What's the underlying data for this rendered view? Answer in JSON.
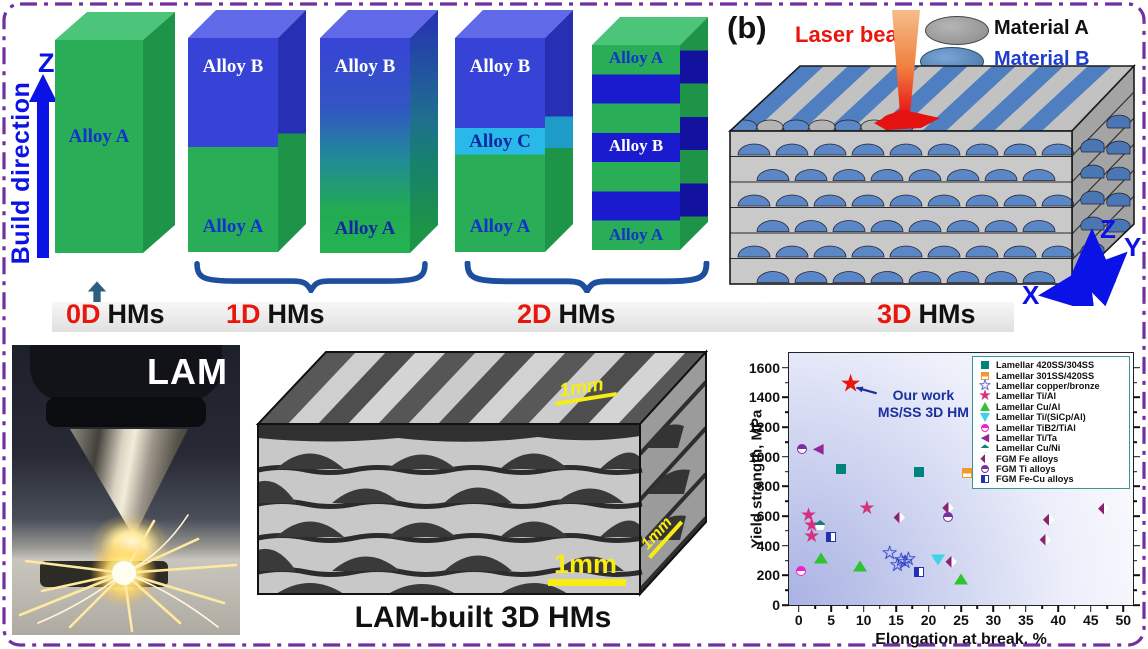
{
  "colors": {
    "border": "#7030a0",
    "accent_blue": "#0a12e6",
    "accent_red": "#e8160c",
    "green_block": "#29ad56",
    "blue_block": "#3743d6",
    "cyan_block": "#29b9e9",
    "brace": "#1e4f9e",
    "scale_bar_yellow": "#f7ec13"
  },
  "diagram": {
    "build_direction": "Build direction",
    "z_axis": "Z",
    "alloy_a": "Alloy A",
    "alloy_b": "Alloy B",
    "alloy_c": "Alloy C",
    "dims": [
      {
        "num": "0D",
        "unit": "HMs"
      },
      {
        "num": "1D",
        "unit": "HMs"
      },
      {
        "num": "2D",
        "unit": "HMs"
      },
      {
        "num": "3D",
        "unit": "HMs"
      }
    ]
  },
  "panel_b": {
    "tag": "(b)",
    "laser_label": "Laser beam",
    "materials": [
      {
        "name": "Material A",
        "color": "#9a9a9a",
        "text_color": "#111111"
      },
      {
        "name": "Material B",
        "color": "#4a7fc4",
        "text_color": "#1f3dcc"
      }
    ],
    "axes": {
      "x": "X",
      "y": "Y",
      "z": "Z"
    }
  },
  "photo": {
    "label": "LAM"
  },
  "micro": {
    "caption": "LAM-built 3D HMs",
    "scale_label": "1mm"
  },
  "chart_data": {
    "type": "scatter",
    "xlabel": "Elongation at break, %",
    "ylabel": "Yield strength, MPa",
    "xlim": [
      0,
      50
    ],
    "ylim": [
      0,
      1600
    ],
    "xticks": [
      0,
      5,
      10,
      15,
      20,
      25,
      30,
      35,
      40,
      45,
      50
    ],
    "yticks": [
      0,
      200,
      400,
      600,
      800,
      1000,
      1200,
      1400,
      1600
    ],
    "grid": false,
    "legend_position": "top-right",
    "series": [
      {
        "name": "Lamellar 420SS/304SS",
        "marker": "square",
        "color": "#00837b",
        "points": [
          [
            6.5,
            920
          ],
          [
            18.5,
            900
          ]
        ]
      },
      {
        "name": "Lamellar 301SS/420SS",
        "marker": "square-half",
        "color": "#f2992e",
        "points": [
          [
            26,
            890
          ]
        ]
      },
      {
        "name": "Lamellar copper/bronze",
        "marker": "star-open",
        "color": "#2636c8",
        "points": [
          [
            14,
            345
          ],
          [
            15.2,
            262
          ],
          [
            15.8,
            300
          ],
          [
            16.4,
            282
          ],
          [
            16.9,
            305
          ]
        ]
      },
      {
        "name": "Lamellar Ti/Al",
        "marker": "star-half",
        "color": "#d4317e",
        "points": [
          [
            1.5,
            600
          ],
          [
            2,
            532
          ],
          [
            2,
            460
          ],
          [
            10.5,
            650
          ]
        ]
      },
      {
        "name": "Lamellar Cu/Al",
        "marker": "triangle-up",
        "color": "#2fc32f",
        "points": [
          [
            3.5,
            320
          ],
          [
            9.5,
            265
          ],
          [
            25,
            175
          ]
        ]
      },
      {
        "name": "Lamellar Ti/(SiCp/Al)",
        "marker": "triangle-down",
        "color": "#3ed3e8",
        "points": [
          [
            21.5,
            302
          ]
        ]
      },
      {
        "name": "Lamellar TiB2/TiAl",
        "marker": "circle-half",
        "color": "#ee22cc",
        "points": [
          [
            0.3,
            228
          ]
        ]
      },
      {
        "name": "Lamellar Ti/Ta",
        "marker": "triangle-left",
        "color": "#93279e",
        "points": [
          [
            3,
            1060
          ]
        ]
      },
      {
        "name": "Lamellar Cu/Ni",
        "marker": "pentagon-half",
        "color": "#0e8076",
        "points": [
          [
            3.3,
            540
          ]
        ]
      },
      {
        "name": "FGM Fe alloys",
        "marker": "diamond-half",
        "color": "#8b2270",
        "points": [
          [
            15.5,
            590
          ],
          [
            23,
            655
          ],
          [
            23.5,
            292
          ],
          [
            38,
            440
          ],
          [
            38.5,
            575
          ],
          [
            47,
            650
          ]
        ]
      },
      {
        "name": "FGM Ti alloys",
        "marker": "circle-half",
        "color": "#7a2fa0",
        "points": [
          [
            0.5,
            1050
          ],
          [
            23,
            597
          ]
        ]
      },
      {
        "name": "FGM Fe-Cu alloys",
        "marker": "square-half-v",
        "color": "#2430b4",
        "points": [
          [
            5,
            460
          ],
          [
            18.5,
            220
          ]
        ]
      }
    ],
    "our_work": {
      "marker": "star",
      "color": "#e8160c",
      "point": [
        8,
        1490
      ]
    },
    "annotation": {
      "line1": "Our work",
      "line2": "MS/SS 3D HM",
      "text_xy": [
        12.2,
        1468
      ],
      "arrow_from": [
        12.0,
        1428
      ],
      "arrow_to": [
        8.9,
        1466
      ]
    }
  }
}
